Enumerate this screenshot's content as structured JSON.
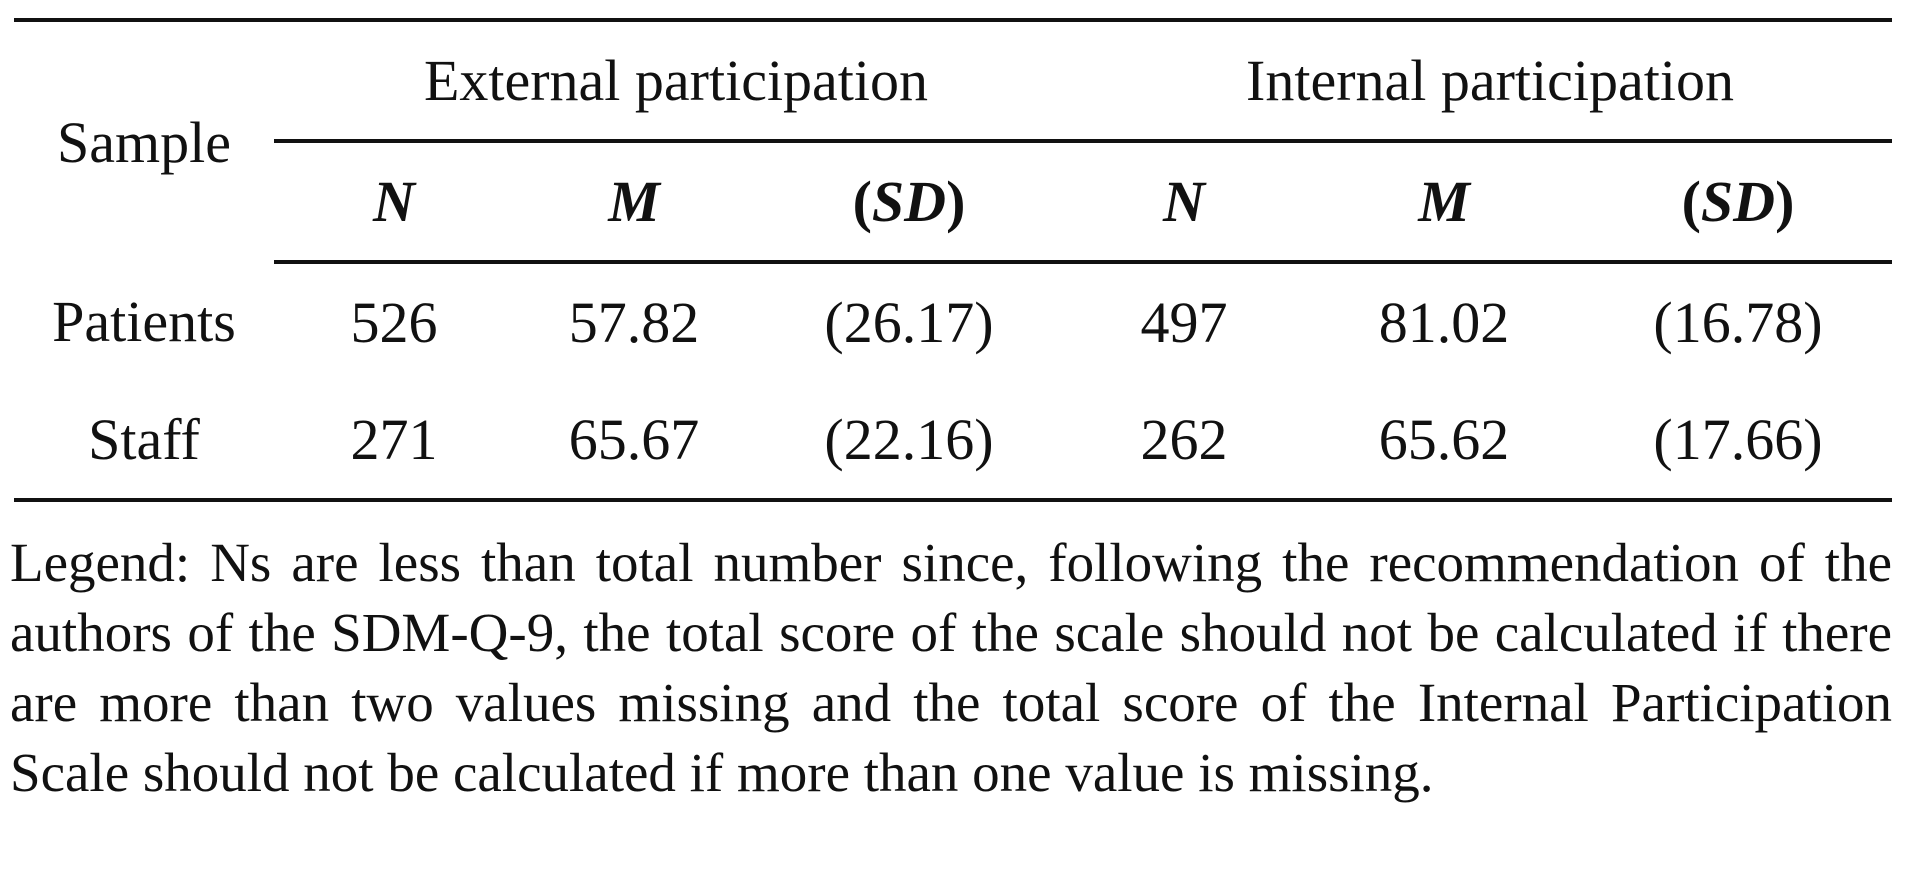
{
  "table": {
    "sample_label": "Sample",
    "groups": [
      "External participation",
      "Internal participation"
    ],
    "subheaders": [
      "N",
      "M",
      "SD"
    ],
    "rows": [
      {
        "sample": "Patients",
        "cells": [
          "526",
          "57.82",
          "(26.17)",
          "497",
          "81.02",
          "(16.78)"
        ]
      },
      {
        "sample": "Staff",
        "cells": [
          "271",
          "65.67",
          "(22.16)",
          "262",
          "65.62",
          "(17.66)"
        ]
      }
    ]
  },
  "footnote": "Legend: Ns are less than total number since, following the recommendation of the authors of the SDM-Q-9, the total score of the scale should not be calculated if there are more than two values missing and the total score of the Internal Participation Scale should not be calculated if more than one value is missing."
}
